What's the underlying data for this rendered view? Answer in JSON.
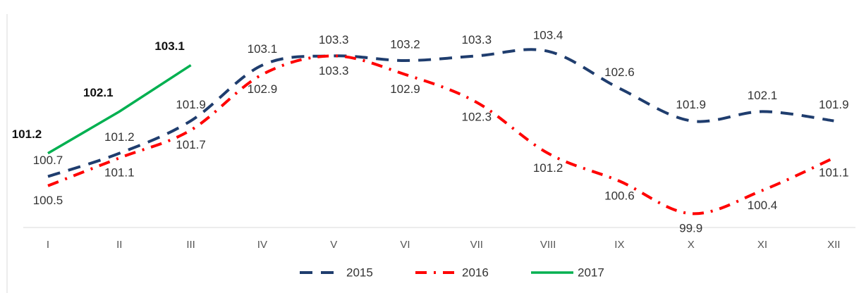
{
  "chart_data": {
    "type": "line",
    "categories": [
      "I",
      "II",
      "III",
      "IV",
      "V",
      "VI",
      "VII",
      "VIII",
      "IX",
      "X",
      "XI",
      "XII"
    ],
    "series": [
      {
        "name": "2015",
        "color": "#1f3d6e",
        "values": [
          100.7,
          101.2,
          101.9,
          103.1,
          103.3,
          103.2,
          103.3,
          103.4,
          102.6,
          101.9,
          102.1,
          101.9
        ]
      },
      {
        "name": "2016",
        "color": "#ff0000",
        "values": [
          100.5,
          101.1,
          101.7,
          102.9,
          103.3,
          102.9,
          102.3,
          101.2,
          100.6,
          99.9,
          100.4,
          101.1
        ]
      },
      {
        "name": "2017",
        "color": "#00b050",
        "values": [
          101.2,
          102.1,
          103.1,
          null,
          null,
          null,
          null,
          null,
          null,
          null,
          null,
          null
        ]
      }
    ],
    "ylim": [
      99.6,
      104.05
    ],
    "legend": "bottom"
  }
}
